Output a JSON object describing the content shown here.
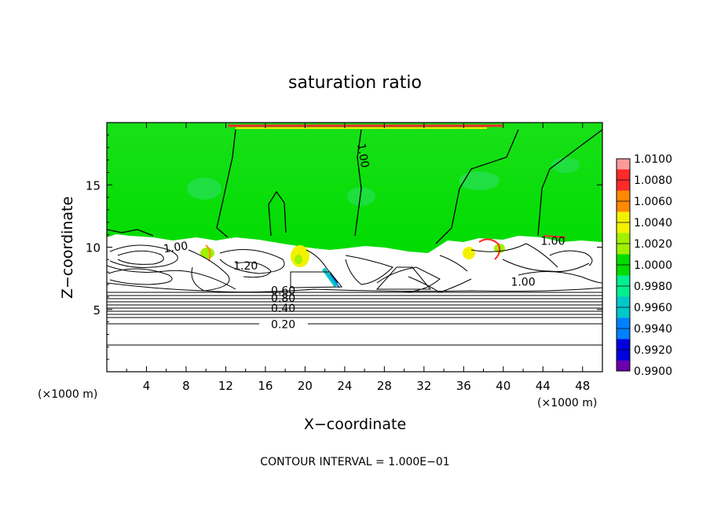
{
  "chart_data": {
    "type": "heatmap",
    "title": "saturation ratio",
    "xlabel": "X−coordinate",
    "ylabel": "Z−coordinate",
    "x_unit_left": "(×1000 m)",
    "x_unit_right": "(×1000 m)",
    "footer": "CONTOUR INTERVAL = 1.000E−01",
    "xlim": [
      0,
      50
    ],
    "ylim": [
      0,
      20
    ],
    "x_ticks": [
      4,
      8,
      12,
      16,
      20,
      24,
      28,
      32,
      36,
      40,
      44,
      48
    ],
    "y_ticks": [
      5,
      10,
      15
    ],
    "colorbar": {
      "levels": [
        "1.0100",
        "1.0080",
        "1.0060",
        "1.0040",
        "1.0020",
        "1.0000",
        "0.9980",
        "0.9960",
        "0.9940",
        "0.9920",
        "0.9900"
      ],
      "colors": [
        "#ff9999",
        "#ff2a2a",
        "#ff8a00",
        "#f2f200",
        "#a0f000",
        "#00dc00",
        "#00ee90",
        "#00c8c8",
        "#0080ff",
        "#0000dd",
        "#6a00aa"
      ]
    },
    "contour_labels": [
      {
        "text": "1.00",
        "x": 25.5,
        "z": 17.3,
        "rotate": 80
      },
      {
        "text": "1.00",
        "x": 7.0,
        "z": 9.7,
        "rotate": -8
      },
      {
        "text": "1.20",
        "x": 14.0,
        "z": 8.2,
        "rotate": 0
      },
      {
        "text": "1.00",
        "x": 45.0,
        "z": 10.2,
        "rotate": 0
      },
      {
        "text": "1.00",
        "x": 42.0,
        "z": 6.9,
        "rotate": 0
      },
      {
        "text": "0.80",
        "x": 17.8,
        "z": 5.6,
        "rotate": 0
      },
      {
        "text": "0.60",
        "x": 17.8,
        "z": 6.2,
        "rotate": 0
      },
      {
        "text": "0.40",
        "x": 17.8,
        "z": 4.8,
        "rotate": 0
      },
      {
        "text": "0.20",
        "x": 17.8,
        "z": 3.5,
        "rotate": 0
      }
    ]
  }
}
